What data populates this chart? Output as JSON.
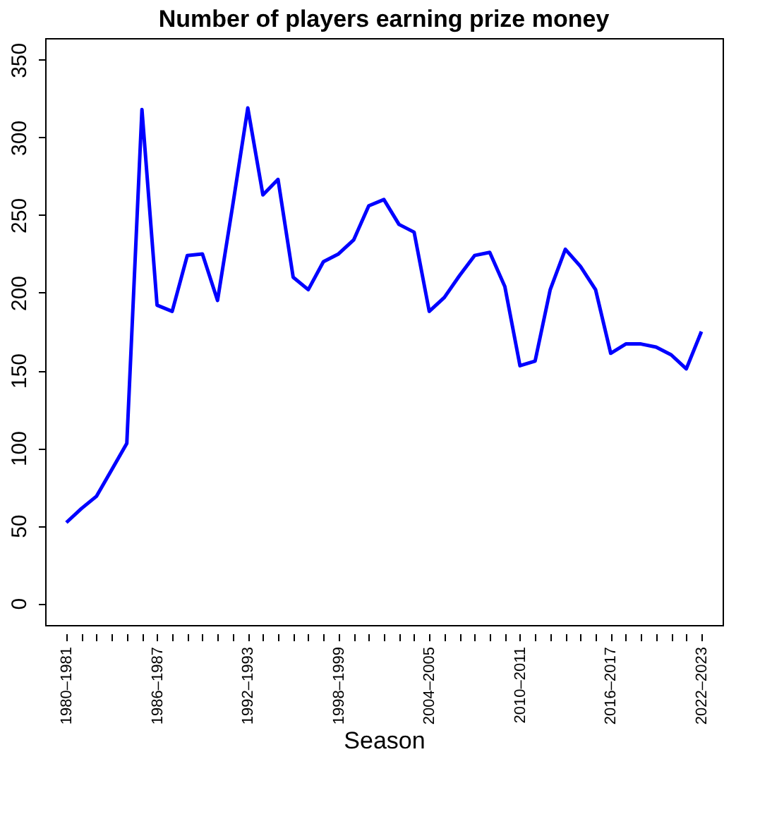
{
  "chart_data": {
    "type": "line",
    "title": "Number of players earning prize money",
    "xlabel": "Season",
    "categories": [
      "1980–1981",
      null,
      null,
      null,
      null,
      null,
      "1986–1987",
      null,
      null,
      null,
      null,
      null,
      "1992–1993",
      null,
      null,
      null,
      null,
      null,
      "1998–1999",
      null,
      null,
      null,
      null,
      null,
      "2004–2005",
      null,
      null,
      null,
      null,
      null,
      "2010–2011",
      null,
      null,
      null,
      null,
      null,
      "2016–2017",
      null,
      null,
      null,
      null,
      null,
      "2022–2023"
    ],
    "series": [
      {
        "color": "#0000ff",
        "values": [
          52,
          61,
          69,
          86,
          103,
          318,
          192,
          188,
          224,
          225,
          195,
          256,
          319,
          263,
          273,
          210,
          202,
          220,
          225,
          234,
          256,
          260,
          244,
          239,
          188,
          197,
          211,
          224,
          226,
          204,
          153,
          156,
          202,
          228,
          217,
          202,
          161,
          167,
          167,
          165,
          160,
          151,
          175
        ]
      }
    ],
    "ylim": [
      -14,
      364
    ],
    "yticks": [
      0,
      50,
      100,
      150,
      200,
      250,
      300,
      350
    ],
    "grid": false,
    "marker": "none",
    "line_style": "solid"
  }
}
